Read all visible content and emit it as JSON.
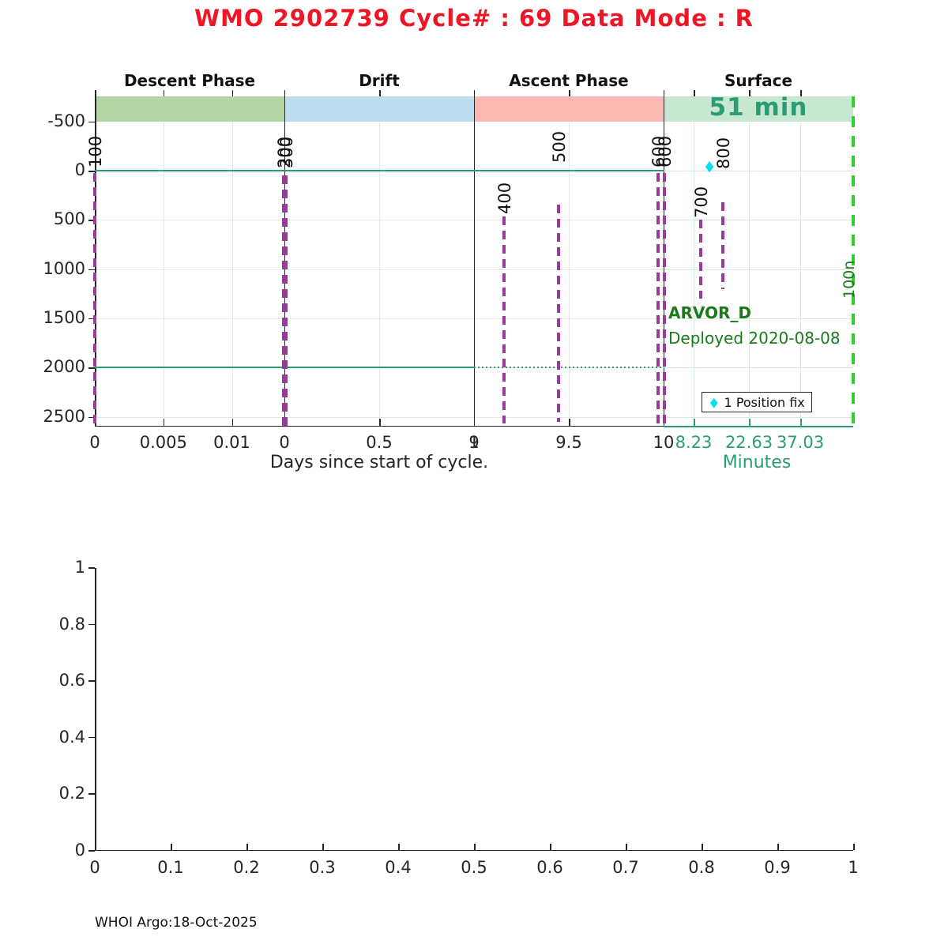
{
  "title": "WMO 2902739   Cycle# : 69   Data Mode : R",
  "footer": "WHOI Argo:18-Oct-2025",
  "colors": {
    "title_red": "#ee1525",
    "teal": "#2a9d74",
    "purple": "#9a3a9a",
    "cyan_marker": "#00dfee",
    "bright_green_dash": "#2fd12f",
    "annotation_green": "#1b7a1b",
    "band_descent": "#b3d6a4",
    "band_drift": "#bedef0",
    "band_ascent": "#f9b8b1",
    "band_surface": "#c8e7d0",
    "grid_gray": "#e6e6e6",
    "grid_teal": "#d7e9df",
    "axis_dark": "#262626"
  },
  "top_chart": {
    "phases": [
      {
        "label": "Descent Phase",
        "band_color": "#b3d6a4"
      },
      {
        "label": "Drift",
        "band_color": "#bedef0"
      },
      {
        "label": "Ascent Phase",
        "band_color": "#f9b8b1"
      },
      {
        "label": "Surface",
        "band_color": "#c8e7d0"
      }
    ],
    "surface_duration": "51 min",
    "y_ticks": [
      "-500",
      "0",
      "500",
      "1000",
      "1500",
      "2000",
      "2500"
    ],
    "segments": [
      {
        "name": "descent",
        "ticks": [
          "0",
          "0.005",
          "0.01"
        ]
      },
      {
        "name": "drift",
        "ticks": [
          "0",
          "0.5",
          "1"
        ]
      },
      {
        "name": "ascent",
        "ticks": [
          "9",
          "9.5",
          "10"
        ]
      },
      {
        "name": "surface",
        "ticks": [
          "8.23",
          "22.63",
          "37.03"
        ]
      }
    ],
    "xlabel": "Days since start of cycle.",
    "surface_xlabel": "Minutes",
    "markers": [
      "100",
      "200",
      "300",
      "400",
      "500",
      "600",
      "600",
      "700",
      "800"
    ],
    "right_line_label": "100n",
    "annotation": {
      "line1": "ARVOR_D",
      "line2": "Deployed 2020-08-08"
    },
    "legend": {
      "marker": "cyan-diamond",
      "label": "1 Position fix"
    }
  },
  "bottom_chart": {
    "x_ticks": [
      "0",
      "0.1",
      "0.2",
      "0.3",
      "0.4",
      "0.5",
      "0.6",
      "0.7",
      "0.8",
      "0.9",
      "1"
    ],
    "y_ticks": [
      "0",
      "0.2",
      "0.4",
      "0.6",
      "0.8",
      "1"
    ]
  },
  "chart_data": {
    "type": "line",
    "title": "WMO 2902739   Cycle# : 69   Data Mode : R",
    "panels": [
      {
        "name": "cycle-timing-panel",
        "y_axis": "pressure/depth, increasing downward",
        "ylim": [
          -755,
          2600
        ],
        "y_ticks": [
          -500,
          0,
          500,
          1000,
          1500,
          2000,
          2500
        ],
        "grid": true,
        "x_segments": [
          {
            "phase": "Descent Phase",
            "unit": "days",
            "ticks": [
              0,
              0.005,
              0.01
            ],
            "xlim": [
              0,
              0.0138
            ]
          },
          {
            "phase": "Drift",
            "unit": "days",
            "ticks": [
              0,
              0.5,
              1
            ],
            "xlim": [
              0,
              1
            ]
          },
          {
            "phase": "Ascent Phase",
            "unit": "days",
            "ticks": [
              9,
              9.5,
              10
            ],
            "xlim": [
              9,
              10
            ]
          },
          {
            "phase": "Surface",
            "unit": "minutes",
            "ticks": [
              8.23,
              22.63,
              37.03
            ],
            "duration_label": "51 min"
          }
        ],
        "series": [
          {
            "name": "surface-reference",
            "depth": 0,
            "style": "solid teal",
            "span": "descent start to ascent end"
          },
          {
            "name": "park-depth",
            "depth": 2000,
            "style": "solid teal",
            "span": "descent and drift"
          },
          {
            "name": "park-depth-ascent",
            "depth": 2000,
            "style": "dotted teal",
            "span": "ascent"
          }
        ],
        "cycle_timing_markers": [
          {
            "code": 100,
            "segment": "descent",
            "x_days": 0.0
          },
          {
            "code": 200,
            "segment": "descent/drift boundary",
            "x_days": 0.0138
          },
          {
            "code": 300,
            "segment": "descent/drift boundary",
            "x_days": 0.0138
          },
          {
            "code": 400,
            "segment": "ascent",
            "x_days": 9.16
          },
          {
            "code": 500,
            "segment": "ascent",
            "x_days": 9.45
          },
          {
            "code": 600,
            "segment": "ascent end",
            "x_days": 9.97
          },
          {
            "code": 600,
            "segment": "ascent end",
            "x_days": 10.0
          },
          {
            "code": 700,
            "segment": "surface",
            "x_minutes": 10.1
          },
          {
            "code": 800,
            "segment": "surface",
            "x_minutes": 15.9
          }
        ],
        "position_fix": {
          "count": 1,
          "marker": "cyan diamond",
          "x_minutes": 12.8,
          "depth": 0
        },
        "right_boundary_dashed_line_label": "100n",
        "annotations": [
          "ARVOR_D",
          "Deployed 2020-08-08"
        ],
        "legend": [
          "1 Position fix"
        ]
      },
      {
        "name": "empty-panel",
        "xlim": [
          0,
          1
        ],
        "ylim": [
          0,
          1
        ],
        "x_ticks": [
          0,
          0.1,
          0.2,
          0.3,
          0.4,
          0.5,
          0.6,
          0.7,
          0.8,
          0.9,
          1
        ],
        "y_ticks": [
          0,
          0.2,
          0.4,
          0.6,
          0.8,
          1
        ],
        "grid": false,
        "data": []
      }
    ]
  }
}
